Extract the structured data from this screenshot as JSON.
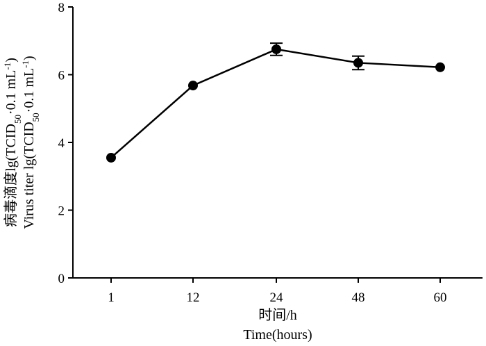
{
  "chart_data": {
    "type": "line",
    "categories": [
      "1",
      "12",
      "24",
      "48",
      "60"
    ],
    "series": [
      {
        "values": [
          3.55,
          5.68,
          6.75,
          6.35,
          6.22
        ],
        "errors": [
          0.0,
          0.0,
          0.18,
          0.2,
          0.0
        ]
      }
    ],
    "xlabel": "时间/h",
    "xlabel_en": "Time(hours)",
    "ylabel_line1": "病毒滴度lg(TCID",
    "ylabel_line1_sub": "50",
    "ylabel_line1_tail": "·0.1 mL",
    "ylabel_line1_sup": "-1",
    "ylabel_line1_end": ")",
    "ylabel_line2": "Virus titer lg(TCID",
    "ylabel_line2_sub": "50",
    "ylabel_line2_tail": "·0.1 mL",
    "ylabel_line2_sup": "-1",
    "ylabel_line2_end": ")",
    "ylim": [
      0,
      8
    ],
    "yticks": [
      "0",
      "2",
      "4",
      "6",
      "8"
    ],
    "grid": false
  }
}
